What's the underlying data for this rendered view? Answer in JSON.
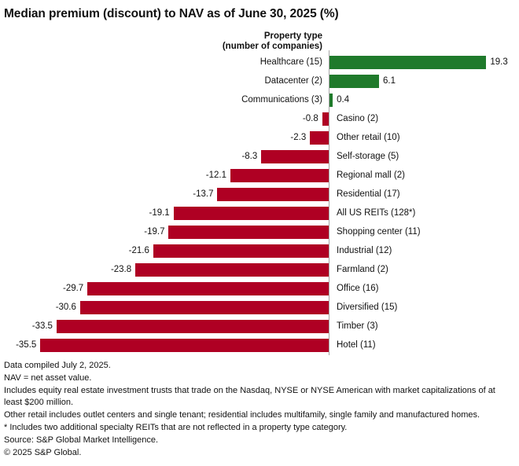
{
  "title": "Median premium (discount) to NAV as of June 30, 2025 (%)",
  "chart_data": {
    "type": "bar",
    "orientation": "horizontal",
    "axis_header": {
      "line1": "Property type",
      "line2": "(number of companies)"
    },
    "categories": [
      "Healthcare (15)",
      "Datacenter (2)",
      "Communications (3)",
      "Casino (2)",
      "Other retail (10)",
      "Self-storage (5)",
      "Regional mall (2)",
      "Residential (17)",
      "All US REITs (128*)",
      "Shopping center (11)",
      "Industrial (12)",
      "Farmland (2)",
      "Office (16)",
      "Diversified (15)",
      "Timber (3)",
      "Hotel (11)"
    ],
    "values": [
      19.3,
      6.1,
      0.4,
      -0.8,
      -2.3,
      -8.3,
      -12.1,
      -13.7,
      -19.1,
      -19.7,
      -21.6,
      -23.8,
      -29.7,
      -30.6,
      -33.5,
      -35.5
    ],
    "value_labels": [
      "19.3",
      "6.1",
      "0.4",
      "-0.8",
      "-2.3",
      "-8.3",
      "-12.1",
      "-13.7",
      "-19.1",
      "-19.7",
      "-21.6",
      "-23.8",
      "-29.7",
      "-30.6",
      "-33.5",
      "-35.5"
    ],
    "positive_color": "#1f7a2b",
    "negative_color": "#af0023",
    "xlim": [
      -35.5,
      19.3
    ],
    "grid": false,
    "legend": false
  },
  "footnotes": [
    "Data compiled July 2, 2025.",
    "NAV = net asset value.",
    "Includes equity real estate investment trusts that trade on the Nasdaq, NYSE or NYSE American with market capitalizations of at least $200 million.",
    "Other retail includes outlet centers and single tenant; residential includes multifamily, single family and manufactured homes.",
    "* Includes two additional specialty REITs that are not reflected in a property type category.",
    "Source: S&P Global Market Intelligence.",
    "© 2025 S&P Global."
  ]
}
